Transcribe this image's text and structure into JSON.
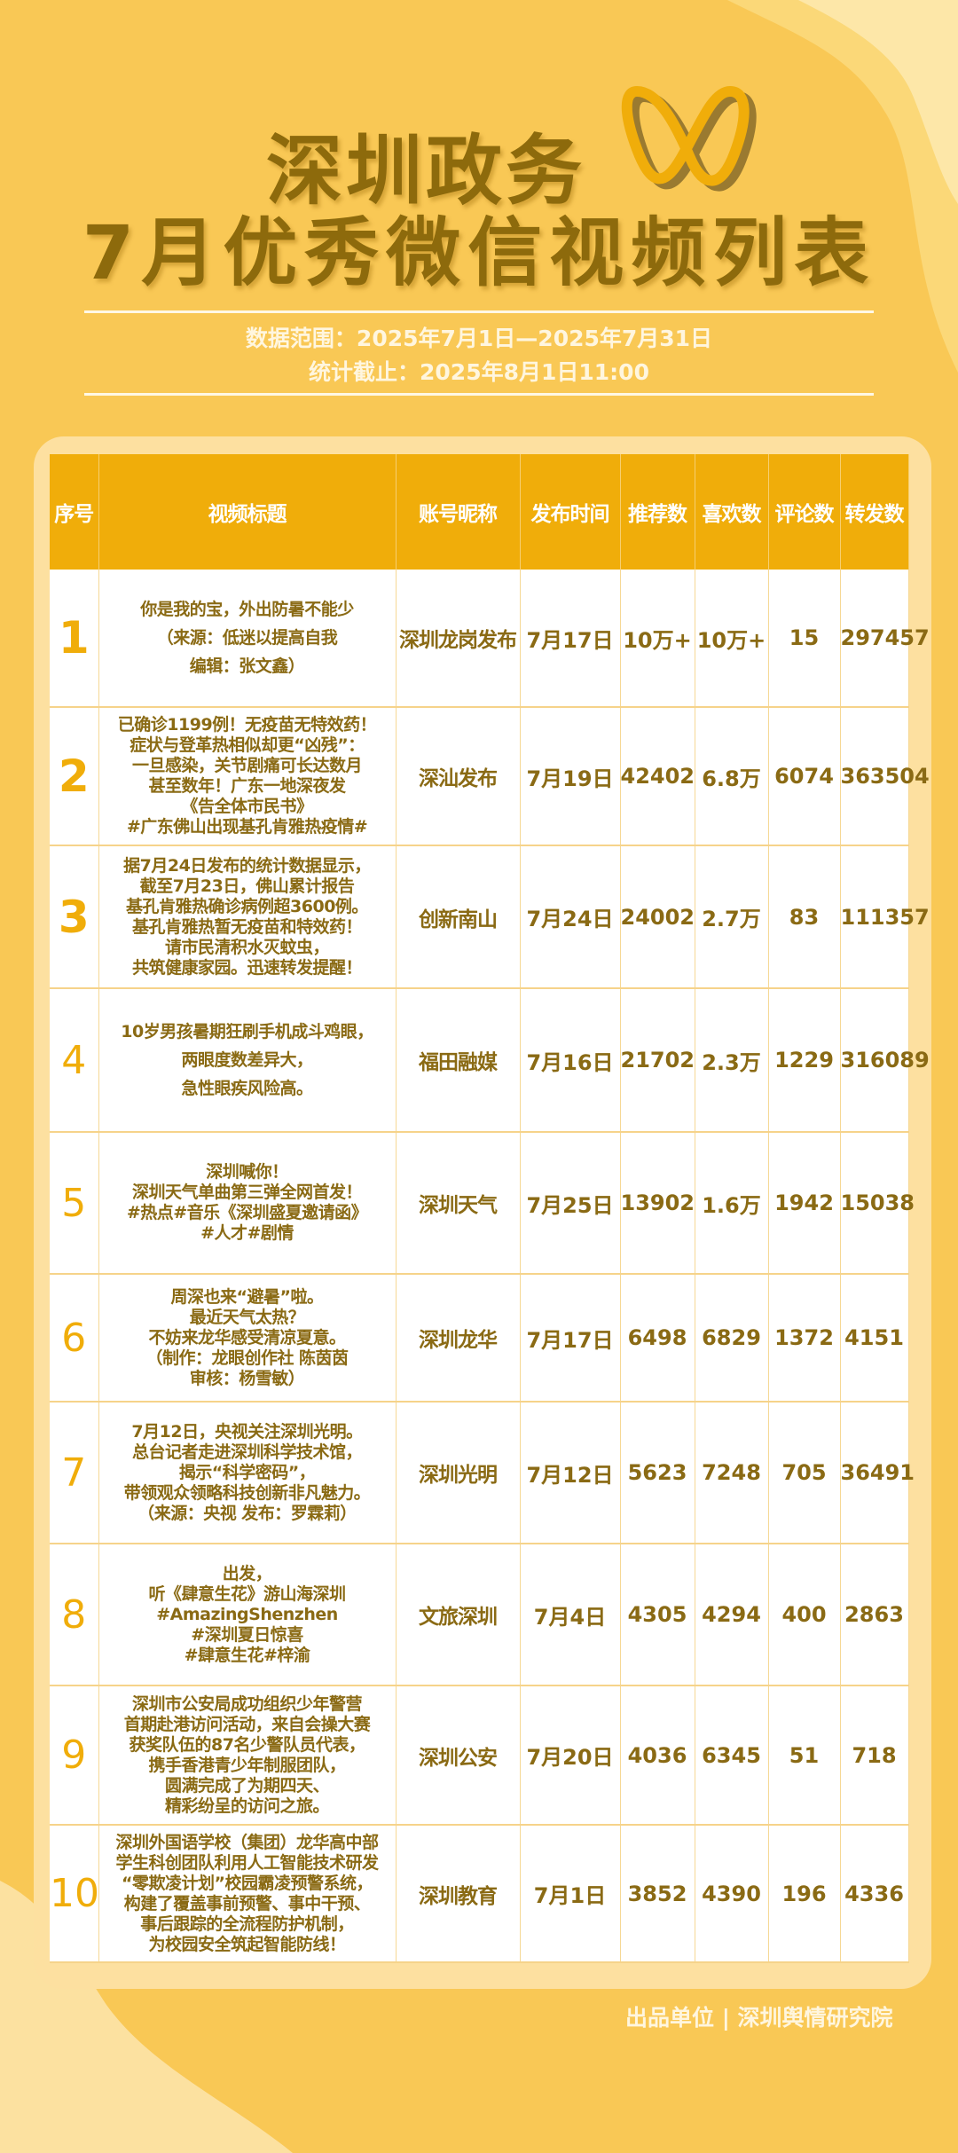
{
  "header": {
    "title_line1": "深圳政务",
    "title_line2": "7月优秀微信视频列表",
    "logo": "wechat-channels-logo",
    "data_range": "数据范围：2025年7月1日—2025年7月31日",
    "cutoff": "统计截止：2025年8月1日11:00"
  },
  "colors": {
    "background": "#f9c855",
    "header": "#f0ad0a",
    "title": "#8d6a0c",
    "cell_text": "#8a6a14"
  },
  "table": {
    "columns": [
      "序号",
      "视频标题",
      "账号昵称",
      "发布时间",
      "推荐数",
      "喜欢数",
      "评论数",
      "转发数"
    ],
    "rows": [
      {
        "rank": "1",
        "title": [
          "你是我的宝，外出防暑不能少",
          "（来源：低迷以提高自我",
          "编辑：张文鑫）"
        ],
        "account": "深圳龙岗发布",
        "date": "7月17日",
        "recommend": "10万+",
        "likes": "10万+",
        "comments": "15",
        "shares": "297457"
      },
      {
        "rank": "2",
        "title": [
          "已确诊1199例！无疫苗无特效药！",
          "症状与登革热相似却更“凶残”：",
          "一旦感染，关节剧痛可长达数月",
          "甚至数年！广东一地深夜发",
          "《告全体市民书》",
          "#广东佛山出现基孔肯雅热疫情#"
        ],
        "account": "深汕发布",
        "date": "7月19日",
        "recommend": "42402",
        "likes": "6.8万",
        "comments": "6074",
        "shares": "363504"
      },
      {
        "rank": "3",
        "title": [
          "据7月24日发布的统计数据显示，",
          "截至7月23日，佛山累计报告",
          "基孔肯雅热确诊病例超3600例。",
          "基孔肯雅热暂无疫苗和特效药！",
          "请市民清积水灭蚊虫，",
          "共筑健康家园。迅速转发提醒！"
        ],
        "account": "创新南山",
        "date": "7月24日",
        "recommend": "24002",
        "likes": "2.7万",
        "comments": "83",
        "shares": "111357"
      },
      {
        "rank": "4",
        "title": [
          "10岁男孩暑期狂刷手机成斗鸡眼，",
          "两眼度数差异大，",
          "急性眼疾风险高。"
        ],
        "account": "福田融媒",
        "date": "7月16日",
        "recommend": "21702",
        "likes": "2.3万",
        "comments": "1229",
        "shares": "316089"
      },
      {
        "rank": "5",
        "title": [
          "深圳喊你！",
          "深圳天气单曲第三弹全网首发！",
          "#热点#音乐《深圳盛夏邀请函》",
          "#人才#剧情"
        ],
        "account": "深圳天气",
        "date": "7月25日",
        "recommend": "13902",
        "likes": "1.6万",
        "comments": "1942",
        "shares": "15038"
      },
      {
        "rank": "6",
        "title": [
          "周深也来“避暑”啦。",
          "最近天气太热？",
          "不妨来龙华感受清凉夏意。",
          "（制作：龙眼创作社 陈茵茵",
          "审核：杨雪敏）"
        ],
        "account": "深圳龙华",
        "date": "7月17日",
        "recommend": "6498",
        "likes": "6829",
        "comments": "1372",
        "shares": "4151"
      },
      {
        "rank": "7",
        "title": [
          "7月12日，央视关注深圳光明。",
          "总台记者走进深圳科学技术馆，",
          "揭示“科学密码”，",
          "带领观众领略科技创新非凡魅力。",
          "（来源：央视 发布：罗霖莉）"
        ],
        "account": "深圳光明",
        "date": "7月12日",
        "recommend": "5623",
        "likes": "7248",
        "comments": "705",
        "shares": "36491"
      },
      {
        "rank": "8",
        "title": [
          "出发，",
          "听《肆意生花》游山海深圳",
          "#AmazingShenzhen",
          "#深圳夏日惊喜",
          "#肆意生花#梓渝"
        ],
        "account": "文旅深圳",
        "date": "7月4日",
        "recommend": "4305",
        "likes": "4294",
        "comments": "400",
        "shares": "2863"
      },
      {
        "rank": "9",
        "title": [
          "深圳市公安局成功组织少年警营",
          "首期赴港访问活动，来自会操大赛",
          "获奖队伍的87名少警队员代表，",
          "携手香港青少年制服团队，",
          "圆满完成了为期四天、",
          "精彩纷呈的访问之旅。"
        ],
        "account": "深圳公安",
        "date": "7月20日",
        "recommend": "4036",
        "likes": "6345",
        "comments": "51",
        "shares": "718"
      },
      {
        "rank": "10",
        "title": [
          "深圳外国语学校（集团）龙华高中部",
          "学生科创团队利用人工智能技术研发",
          "“零欺凌计划”校园霸凌预警系统，",
          "构建了覆盖事前预警、事中干预、",
          "事后跟踪的全流程防护机制，",
          "为校园安全筑起智能防线！"
        ],
        "account": "深圳教育",
        "date": "7月1日",
        "recommend": "3852",
        "likes": "4390",
        "comments": "196",
        "shares": "4336"
      }
    ]
  },
  "footer": "出品单位 | 深圳舆情研究院"
}
